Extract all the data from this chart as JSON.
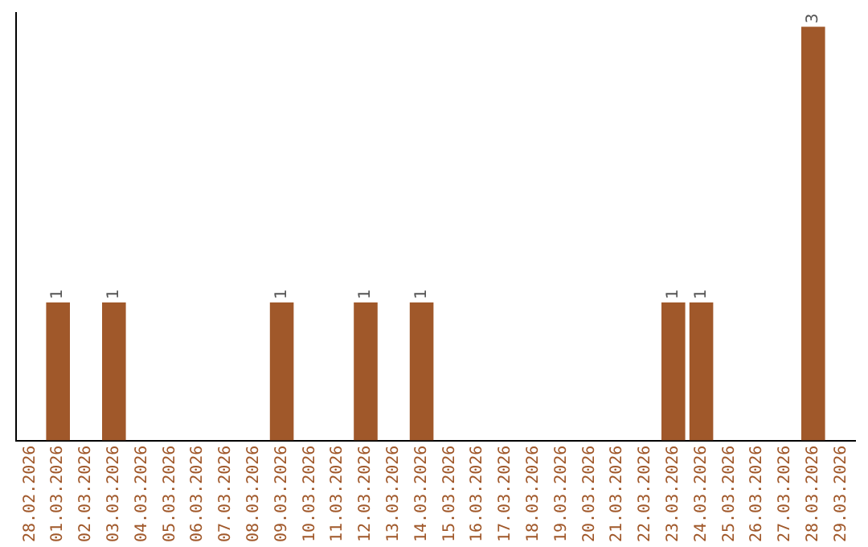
{
  "chart_data": {
    "type": "bar",
    "categories": [
      "28.02.2026",
      "01.03.2026",
      "02.03.2026",
      "03.03.2026",
      "04.03.2026",
      "05.03.2026",
      "06.03.2026",
      "07.03.2026",
      "08.03.2026",
      "09.03.2026",
      "10.03.2026",
      "11.03.2026",
      "12.03.2026",
      "13.03.2026",
      "14.03.2026",
      "15.03.2026",
      "16.03.2026",
      "17.03.2026",
      "18.03.2026",
      "19.03.2026",
      "20.03.2026",
      "21.03.2026",
      "22.03.2026",
      "23.03.2026",
      "24.03.2026",
      "25.03.2026",
      "26.03.2026",
      "27.03.2026",
      "28.03.2026",
      "29.03.2026"
    ],
    "values": [
      0,
      1,
      0,
      1,
      0,
      0,
      0,
      0,
      0,
      1,
      0,
      0,
      1,
      0,
      1,
      0,
      0,
      0,
      0,
      0,
      0,
      0,
      0,
      1,
      1,
      0,
      0,
      0,
      3,
      0
    ],
    "value_labels": [
      null,
      "1",
      null,
      "1",
      null,
      null,
      null,
      null,
      null,
      "1",
      null,
      null,
      "1",
      null,
      "1",
      null,
      null,
      null,
      null,
      null,
      null,
      null,
      null,
      "1",
      "1",
      null,
      null,
      null,
      "3",
      null
    ],
    "color": "#a0582a",
    "ylim": [
      0,
      3.1
    ],
    "grid": false,
    "legend": false,
    "tick_labels": "x"
  }
}
